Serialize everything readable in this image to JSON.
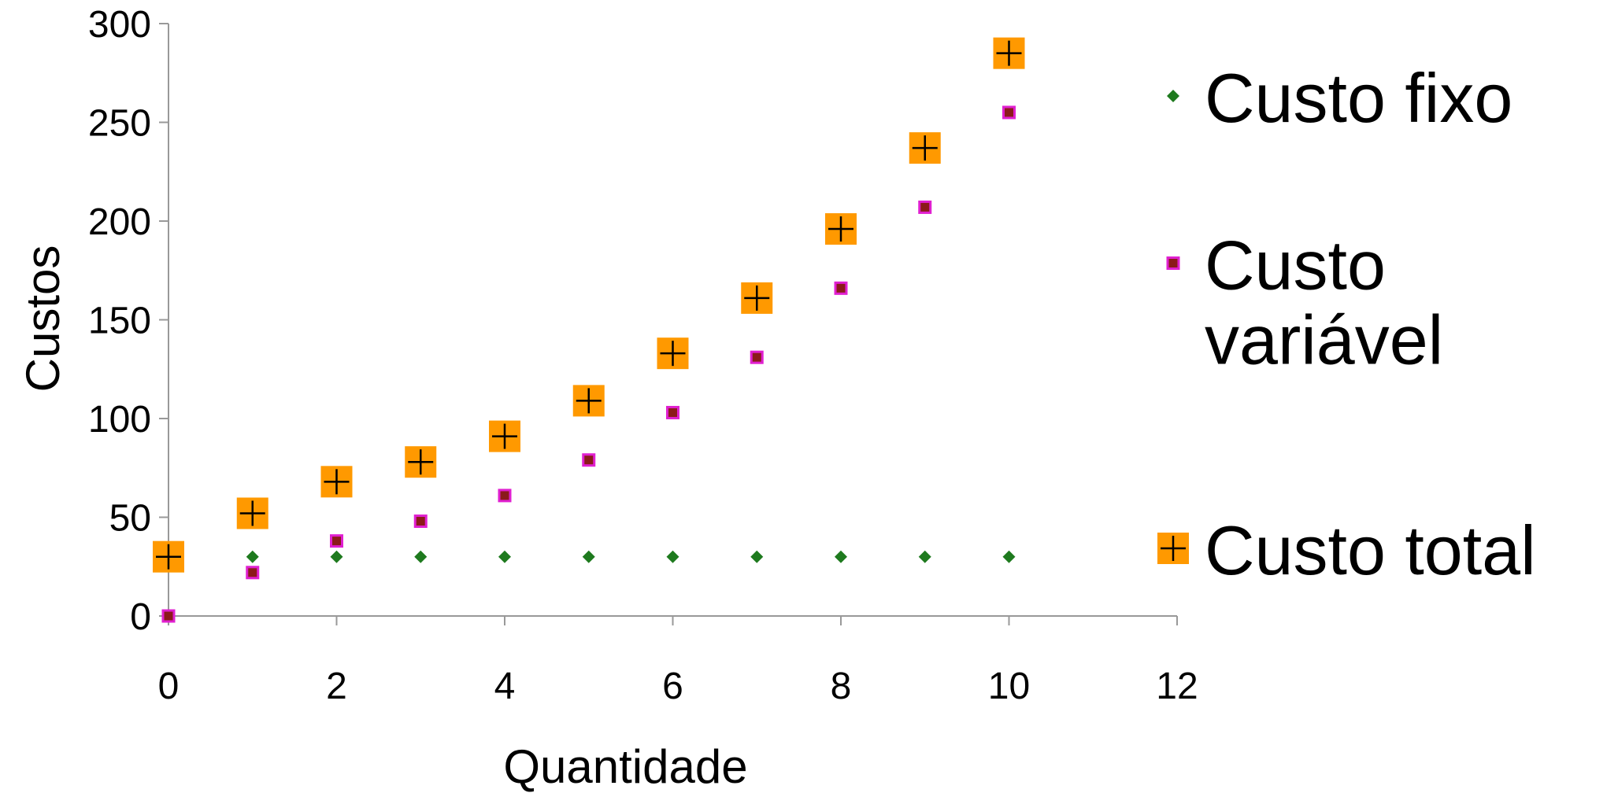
{
  "chart_data": {
    "type": "scatter",
    "title": "",
    "xlabel": "Quantidade",
    "ylabel": "Custos",
    "xlim": [
      0,
      12
    ],
    "ylim": [
      0,
      300
    ],
    "xticks": [
      0,
      2,
      4,
      6,
      8,
      10,
      12
    ],
    "yticks": [
      0,
      50,
      100,
      150,
      200,
      250,
      300
    ],
    "grid": false,
    "legend_position": "right",
    "series": [
      {
        "name": "Custo fixo",
        "marker": "diamond",
        "color": "#1e7a1e",
        "x": [
          1,
          2,
          3,
          4,
          5,
          6,
          7,
          8,
          9,
          10
        ],
        "y": [
          30,
          30,
          30,
          30,
          30,
          30,
          30,
          30,
          30,
          30
        ]
      },
      {
        "name": "Custo variável",
        "marker": "square",
        "color": "#8b1a1a",
        "edge_color": "#e020d0",
        "x": [
          0,
          1,
          2,
          3,
          4,
          5,
          6,
          7,
          8,
          9,
          10
        ],
        "y": [
          0,
          22,
          38,
          48,
          61,
          79,
          103,
          131,
          166,
          207,
          255
        ]
      },
      {
        "name": "Custo total",
        "marker": "plus-square",
        "color": "#ff9900",
        "x": [
          0,
          1,
          2,
          3,
          4,
          5,
          6,
          7,
          8,
          9,
          10
        ],
        "y": [
          30,
          52,
          68,
          78,
          91,
          109,
          133,
          161,
          196,
          237,
          285
        ]
      }
    ],
    "legend_lines": [
      [
        "Custo fixo"
      ],
      [
        "Custo",
        "variável"
      ],
      [
        "Custo total"
      ]
    ]
  }
}
